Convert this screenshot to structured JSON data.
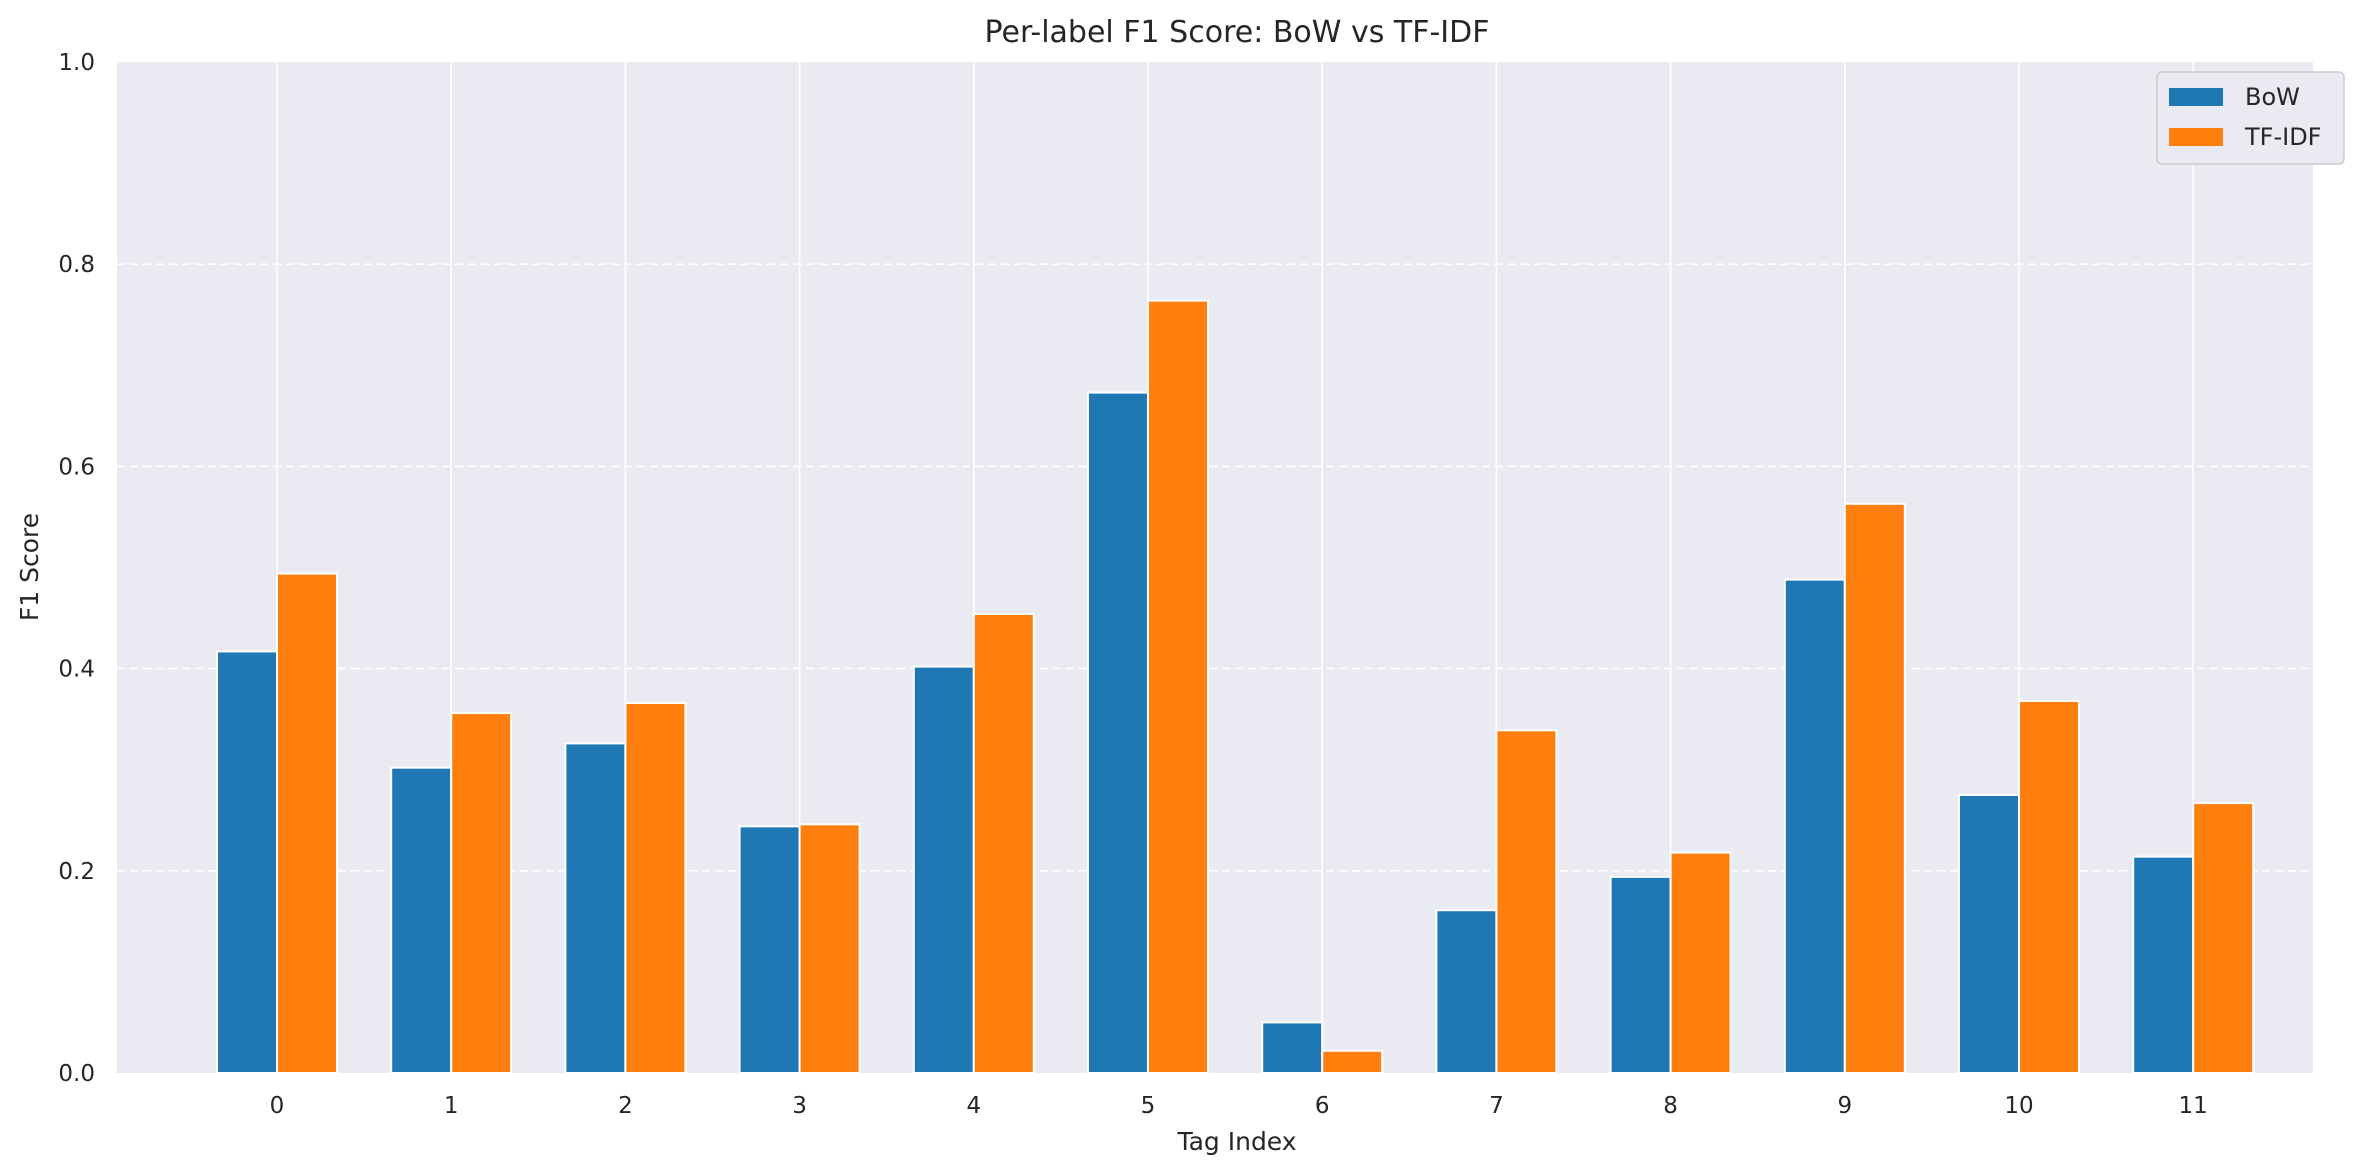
{
  "chart_data": {
    "type": "bar",
    "title": "Per-label F1 Score: BoW vs TF-IDF",
    "xlabel": "Tag Index",
    "ylabel": "F1 Score",
    "categories": [
      "0",
      "1",
      "2",
      "3",
      "4",
      "5",
      "6",
      "7",
      "8",
      "9",
      "10",
      "11"
    ],
    "series": [
      {
        "name": "BoW",
        "color": "#1f77b4",
        "values": [
          0.417,
          0.302,
          0.326,
          0.244,
          0.402,
          0.673,
          0.05,
          0.161,
          0.194,
          0.488,
          0.275,
          0.214
        ]
      },
      {
        "name": "TF-IDF",
        "color": "#ff7f0e",
        "values": [
          0.494,
          0.356,
          0.366,
          0.246,
          0.454,
          0.764,
          0.022,
          0.339,
          0.218,
          0.563,
          0.368,
          0.267
        ]
      }
    ],
    "ylim": [
      0,
      1.0
    ],
    "yticks": [
      "0.0",
      "0.2",
      "0.4",
      "0.6",
      "0.8",
      "1.0"
    ],
    "grid": true,
    "legend_position": "top-right",
    "background_color": "#eaeaf2"
  }
}
